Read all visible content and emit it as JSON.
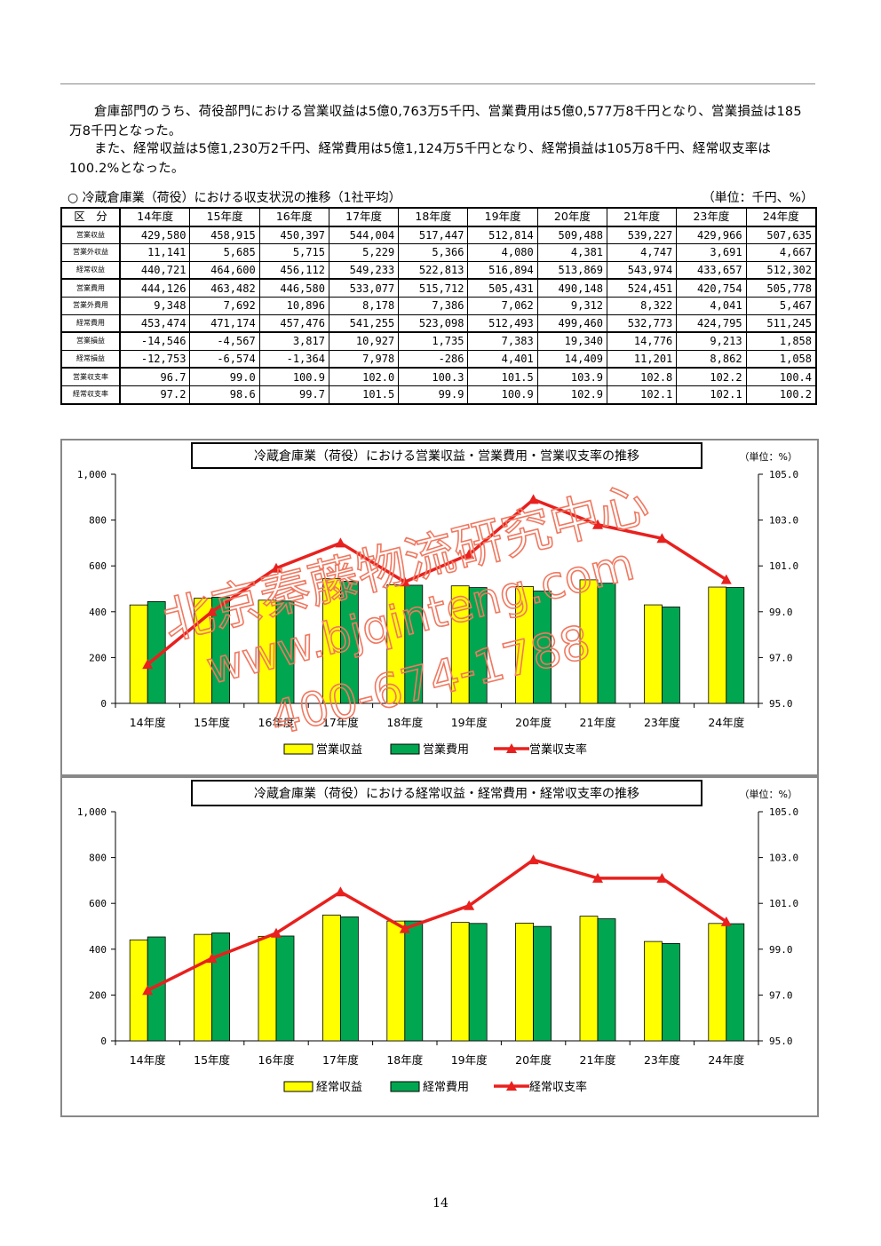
{
  "paragraphs": {
    "p1": "倉庫部門のうち、荷役部門における営業収益は5億0,763万5千円、営業費用は5億0,577万8千円となり、営業損益は185万8千円となった。",
    "p2": "また、経常収益は5億1,230万2千円、経常費用は5億1,124万5千円となり、経常損益は105万8千円、経常収支率は100.2%となった。"
  },
  "table": {
    "caption": "○ 冷蔵倉庫業（荷役）における収支状況の推移（1社平均）",
    "unit": "（単位：千円、%）",
    "corner": "区　分",
    "years": [
      "14年度",
      "15年度",
      "16年度",
      "17年度",
      "18年度",
      "19年度",
      "20年度",
      "21年度",
      "23年度",
      "24年度"
    ],
    "rows": [
      {
        "label": "営業収益",
        "values": [
          "429,580",
          "458,915",
          "450,397",
          "544,004",
          "517,447",
          "512,814",
          "509,488",
          "539,227",
          "429,966",
          "507,635"
        ]
      },
      {
        "label": "営業外収益",
        "values": [
          "11,141",
          "5,685",
          "5,715",
          "5,229",
          "5,366",
          "4,080",
          "4,381",
          "4,747",
          "3,691",
          "4,667"
        ]
      },
      {
        "label": "経常収益",
        "values": [
          "440,721",
          "464,600",
          "456,112",
          "549,233",
          "522,813",
          "516,894",
          "513,869",
          "543,974",
          "433,657",
          "512,302"
        ]
      },
      {
        "label": "営業費用",
        "values": [
          "444,126",
          "463,482",
          "446,580",
          "533,077",
          "515,712",
          "505,431",
          "490,148",
          "524,451",
          "420,754",
          "505,778"
        ]
      },
      {
        "label": "営業外費用",
        "values": [
          "9,348",
          "7,692",
          "10,896",
          "8,178",
          "7,386",
          "7,062",
          "9,312",
          "8,322",
          "4,041",
          "5,467"
        ]
      },
      {
        "label": "経常費用",
        "values": [
          "453,474",
          "471,174",
          "457,476",
          "541,255",
          "523,098",
          "512,493",
          "499,460",
          "532,773",
          "424,795",
          "511,245"
        ]
      },
      {
        "label": "営業損益",
        "values": [
          "-14,546",
          "-4,567",
          "3,817",
          "10,927",
          "1,735",
          "7,383",
          "19,340",
          "14,776",
          "9,213",
          "1,858"
        ]
      },
      {
        "label": "経常損益",
        "values": [
          "-12,753",
          "-6,574",
          "-1,364",
          "7,978",
          "-286",
          "4,401",
          "14,409",
          "11,201",
          "8,862",
          "1,058"
        ]
      },
      {
        "label": "営業収支率",
        "values": [
          "96.7",
          "99.0",
          "100.9",
          "102.0",
          "100.3",
          "101.5",
          "103.9",
          "102.8",
          "102.2",
          "100.4"
        ]
      },
      {
        "label": "経常収支率",
        "values": [
          "97.2",
          "98.6",
          "99.7",
          "101.5",
          "99.9",
          "100.9",
          "102.9",
          "102.1",
          "102.1",
          "100.2"
        ]
      }
    ]
  },
  "chart_data": [
    {
      "type": "bar",
      "title": "冷蔵倉庫業（荷役）における営業収益・営業費用・営業収支率の推移",
      "unit": "（単位：%）",
      "categories": [
        "14年度",
        "15年度",
        "16年度",
        "17年度",
        "18年度",
        "19年度",
        "20年度",
        "21年度",
        "23年度",
        "24年度"
      ],
      "y_ticks": [
        "0",
        "200",
        "400",
        "600",
        "800",
        "1,000"
      ],
      "y2_ticks": [
        "95.0",
        "97.0",
        "99.0",
        "101.0",
        "103.0",
        "105.0"
      ],
      "ylim": [
        0,
        1000
      ],
      "y2lim": [
        95,
        105
      ],
      "series": [
        {
          "name": "営業収益",
          "kind": "bar",
          "color": "#ffff00",
          "values": [
            429.58,
            458.915,
            450.397,
            544.004,
            517.447,
            512.814,
            509.488,
            539.227,
            429.966,
            507.635
          ]
        },
        {
          "name": "営業費用",
          "kind": "bar",
          "color": "#00a650",
          "values": [
            444.126,
            463.482,
            446.58,
            533.077,
            515.712,
            505.431,
            490.148,
            524.451,
            420.754,
            505.778
          ]
        },
        {
          "name": "営業収支率",
          "kind": "line",
          "axis": "right",
          "color": "#e8201e",
          "values": [
            96.7,
            99.0,
            100.9,
            102.0,
            100.3,
            101.5,
            103.9,
            102.8,
            102.2,
            100.4
          ]
        }
      ],
      "legend": "bottom"
    },
    {
      "type": "bar",
      "title": "冷蔵倉庫業（荷役）における経常収益・経常費用・経常収支率の推移",
      "unit": "（単位：%）",
      "categories": [
        "14年度",
        "15年度",
        "16年度",
        "17年度",
        "18年度",
        "19年度",
        "20年度",
        "21年度",
        "23年度",
        "24年度"
      ],
      "y_ticks": [
        "0",
        "200",
        "400",
        "600",
        "800",
        "1,000"
      ],
      "y2_ticks": [
        "95.0",
        "97.0",
        "99.0",
        "101.0",
        "103.0",
        "105.0"
      ],
      "ylim": [
        0,
        1000
      ],
      "y2lim": [
        95,
        105
      ],
      "series": [
        {
          "name": "経常収益",
          "kind": "bar",
          "color": "#ffff00",
          "values": [
            440.721,
            464.6,
            456.112,
            549.233,
            522.813,
            516.894,
            513.869,
            543.974,
            433.657,
            512.302
          ]
        },
        {
          "name": "経常費用",
          "kind": "bar",
          "color": "#00a650",
          "values": [
            453.474,
            471.174,
            457.476,
            541.255,
            523.098,
            512.493,
            499.46,
            532.773,
            424.795,
            511.245
          ]
        },
        {
          "name": "経常収支率",
          "kind": "line",
          "axis": "right",
          "color": "#e8201e",
          "values": [
            97.2,
            98.6,
            99.7,
            101.5,
            99.9,
            100.9,
            102.9,
            102.1,
            102.1,
            100.2
          ]
        }
      ],
      "legend": "bottom"
    }
  ],
  "watermark": {
    "line1": "北京秦藤物流研究中心",
    "line2": "www.bjqinteng.com",
    "line3": "400-674-1788",
    "color": "#f07860"
  },
  "page_number": "14"
}
